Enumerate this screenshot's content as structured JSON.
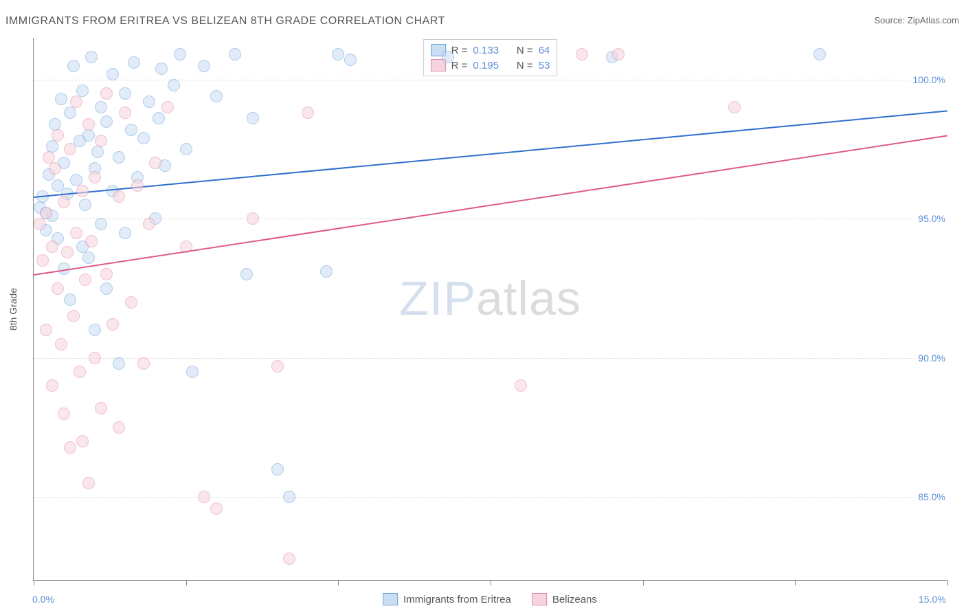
{
  "title": "IMMIGRANTS FROM ERITREA VS BELIZEAN 8TH GRADE CORRELATION CHART",
  "source_label": "Source: ",
  "source_value": "ZipAtlas.com",
  "watermark": {
    "part1": "ZIP",
    "part2": "atlas"
  },
  "chart": {
    "type": "scatter",
    "y_axis_title": "8th Grade",
    "x_range": [
      0,
      15
    ],
    "y_range": [
      82,
      101.5
    ],
    "x_labels": [
      {
        "value": 0,
        "text": "0.0%"
      },
      {
        "value": 15,
        "text": "15.0%"
      }
    ],
    "x_ticks": [
      0,
      2.5,
      5,
      7.5,
      10,
      12.5,
      15
    ],
    "y_gridlines": [
      {
        "value": 85,
        "text": "85.0%"
      },
      {
        "value": 90,
        "text": "90.0%"
      },
      {
        "value": 95,
        "text": "95.0%"
      },
      {
        "value": 100,
        "text": "100.0%"
      }
    ],
    "series": [
      {
        "name": "Immigrants from Eritrea",
        "fill": "#c9ddf3",
        "stroke": "#6fa3e0",
        "line_color": "#2f6fd0",
        "R_label": "R = ",
        "R": "0.133",
        "N_label": "N = ",
        "N": "64",
        "trend": {
          "x1": 0,
          "y1": 95.8,
          "x2": 15,
          "y2": 98.9
        },
        "points": [
          [
            0.1,
            95.4
          ],
          [
            0.15,
            95.8
          ],
          [
            0.2,
            94.6
          ],
          [
            0.2,
            95.2
          ],
          [
            0.25,
            96.6
          ],
          [
            0.3,
            97.6
          ],
          [
            0.3,
            95.1
          ],
          [
            0.35,
            98.4
          ],
          [
            0.4,
            96.2
          ],
          [
            0.4,
            94.3
          ],
          [
            0.45,
            99.3
          ],
          [
            0.5,
            97.0
          ],
          [
            0.5,
            93.2
          ],
          [
            0.55,
            95.9
          ],
          [
            0.6,
            98.8
          ],
          [
            0.6,
            92.1
          ],
          [
            0.65,
            100.5
          ],
          [
            0.7,
            96.4
          ],
          [
            0.75,
            97.8
          ],
          [
            0.8,
            94.0
          ],
          [
            0.8,
            99.6
          ],
          [
            0.85,
            95.5
          ],
          [
            0.9,
            98.0
          ],
          [
            0.9,
            93.6
          ],
          [
            0.95,
            100.8
          ],
          [
            1.0,
            96.8
          ],
          [
            1.0,
            91.0
          ],
          [
            1.05,
            97.4
          ],
          [
            1.1,
            99.0
          ],
          [
            1.1,
            94.8
          ],
          [
            1.2,
            98.5
          ],
          [
            1.2,
            92.5
          ],
          [
            1.3,
            96.0
          ],
          [
            1.3,
            100.2
          ],
          [
            1.4,
            97.2
          ],
          [
            1.4,
            89.8
          ],
          [
            1.5,
            99.5
          ],
          [
            1.5,
            94.5
          ],
          [
            1.6,
            98.2
          ],
          [
            1.65,
            100.6
          ],
          [
            1.7,
            96.5
          ],
          [
            1.8,
            97.9
          ],
          [
            1.9,
            99.2
          ],
          [
            2.0,
            95.0
          ],
          [
            2.05,
            98.6
          ],
          [
            2.1,
            100.4
          ],
          [
            2.15,
            96.9
          ],
          [
            2.3,
            99.8
          ],
          [
            2.4,
            100.9
          ],
          [
            2.5,
            97.5
          ],
          [
            2.6,
            89.5
          ],
          [
            2.8,
            100.5
          ],
          [
            3.0,
            99.4
          ],
          [
            3.3,
            100.9
          ],
          [
            3.5,
            93.0
          ],
          [
            3.6,
            98.6
          ],
          [
            4.0,
            86.0
          ],
          [
            4.2,
            85.0
          ],
          [
            4.8,
            93.1
          ],
          [
            5.0,
            100.9
          ],
          [
            5.2,
            100.7
          ],
          [
            6.8,
            100.8
          ],
          [
            12.9,
            100.9
          ],
          [
            9.5,
            100.8
          ]
        ]
      },
      {
        "name": "Belizeans",
        "fill": "#f6d4de",
        "stroke": "#e48ba8",
        "line_color": "#e05a85",
        "R_label": "R = ",
        "R": "0.195",
        "N_label": "N = ",
        "N": "53",
        "trend": {
          "x1": 0,
          "y1": 93.0,
          "x2": 15,
          "y2": 98.0
        },
        "points": [
          [
            0.1,
            94.8
          ],
          [
            0.15,
            93.5
          ],
          [
            0.2,
            95.2
          ],
          [
            0.2,
            91.0
          ],
          [
            0.25,
            97.2
          ],
          [
            0.3,
            94.0
          ],
          [
            0.3,
            89.0
          ],
          [
            0.35,
            96.8
          ],
          [
            0.4,
            92.5
          ],
          [
            0.4,
            98.0
          ],
          [
            0.45,
            90.5
          ],
          [
            0.5,
            95.6
          ],
          [
            0.5,
            88.0
          ],
          [
            0.55,
            93.8
          ],
          [
            0.6,
            97.5
          ],
          [
            0.6,
            86.8
          ],
          [
            0.65,
            91.5
          ],
          [
            0.7,
            94.5
          ],
          [
            0.7,
            99.2
          ],
          [
            0.75,
            89.5
          ],
          [
            0.8,
            96.0
          ],
          [
            0.8,
            87.0
          ],
          [
            0.85,
            92.8
          ],
          [
            0.9,
            98.4
          ],
          [
            0.9,
            85.5
          ],
          [
            0.95,
            94.2
          ],
          [
            1.0,
            90.0
          ],
          [
            1.0,
            96.5
          ],
          [
            1.1,
            88.2
          ],
          [
            1.1,
            97.8
          ],
          [
            1.2,
            93.0
          ],
          [
            1.2,
            99.5
          ],
          [
            1.3,
            91.2
          ],
          [
            1.4,
            95.8
          ],
          [
            1.4,
            87.5
          ],
          [
            1.5,
            98.8
          ],
          [
            1.6,
            92.0
          ],
          [
            1.7,
            96.2
          ],
          [
            1.8,
            89.8
          ],
          [
            1.9,
            94.8
          ],
          [
            2.0,
            97.0
          ],
          [
            2.2,
            99.0
          ],
          [
            2.5,
            94.0
          ],
          [
            2.8,
            85.0
          ],
          [
            3.0,
            84.6
          ],
          [
            3.6,
            95.0
          ],
          [
            4.0,
            89.7
          ],
          [
            4.2,
            82.8
          ],
          [
            4.5,
            98.8
          ],
          [
            8.0,
            89.0
          ],
          [
            9.0,
            100.9
          ],
          [
            9.6,
            100.9
          ],
          [
            11.5,
            99.0
          ]
        ]
      }
    ]
  }
}
